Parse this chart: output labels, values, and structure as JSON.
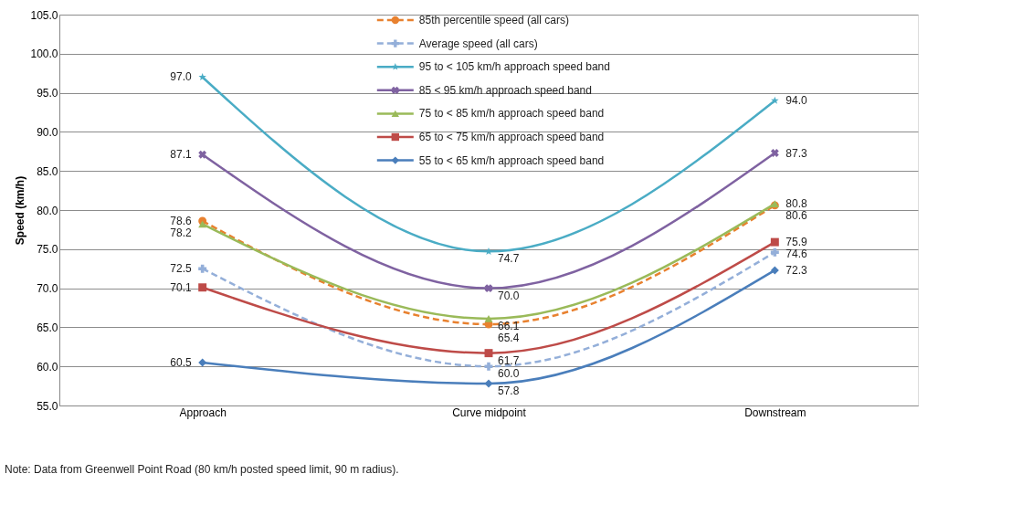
{
  "chart_data": {
    "type": "line",
    "ylabel": "Speed (km/h)",
    "categories": [
      "Approach",
      "Curve midpoint",
      "Downstream"
    ],
    "ylim": [
      55,
      105
    ],
    "yticks": [
      {
        "value": 55,
        "label": "55.0"
      },
      {
        "value": 60,
        "label": "60.0"
      },
      {
        "value": 65,
        "label": "65.0"
      },
      {
        "value": 70,
        "label": "70.0"
      },
      {
        "value": 75,
        "label": "75.0"
      },
      {
        "value": 80,
        "label": "80.0"
      },
      {
        "value": 85,
        "label": "85.0"
      },
      {
        "value": 90,
        "label": "90.0"
      },
      {
        "value": 95,
        "label": "95.0"
      },
      {
        "value": 100,
        "label": "100.0"
      },
      {
        "value": 105,
        "label": "105.0"
      }
    ],
    "grid": "y",
    "legend": "top",
    "series": [
      {
        "name": "85th percentile speed (all cars)",
        "color": "#e8812f",
        "values": [
          78.6,
          65.4,
          80.6
        ],
        "value_labels": [
          "78.6",
          "65.4",
          "80.6"
        ],
        "marker": "circle",
        "line_style": "dashed"
      },
      {
        "name": "Average speed (all cars)",
        "color": "#94afd9",
        "values": [
          72.5,
          60.0,
          74.6
        ],
        "value_labels": [
          "72.5",
          "60.0",
          "74.6"
        ],
        "marker": "cross",
        "line_style": "dashed"
      },
      {
        "name": "95 to < 105 km/h approach speed band",
        "color": "#4aacc5",
        "values": [
          97.0,
          74.7,
          94.0
        ],
        "value_labels": [
          "97.0",
          "74.7",
          "94.0"
        ],
        "marker": "star",
        "line_style": "solid"
      },
      {
        "name": "85 < 95 km/h  approach speed band",
        "color": "#7f62a1",
        "values": [
          87.1,
          70.0,
          87.3
        ],
        "value_labels": [
          "87.1",
          "70.0",
          "87.3"
        ],
        "marker": "cross",
        "line_style": "solid"
      },
      {
        "name": "75 to < 85 km/h  approach speed band",
        "color": "#9aba59",
        "values": [
          78.2,
          66.1,
          80.8
        ],
        "value_labels": [
          "78.2",
          "66.1",
          "80.8"
        ],
        "marker": "triangle",
        "line_style": "solid"
      },
      {
        "name": "65 to < 75 km/h  approach speed band",
        "color": "#be4b48",
        "values": [
          70.1,
          61.7,
          75.9
        ],
        "value_labels": [
          "70.1",
          "61.7",
          "75.9"
        ],
        "marker": "square",
        "line_style": "solid"
      },
      {
        "name": "55 to < 65 km/h  approach speed band",
        "color": "#4a7ebb",
        "values": [
          60.5,
          57.8,
          72.3
        ],
        "value_labels": [
          "60.5",
          "57.8",
          "72.3"
        ],
        "marker": "diamond",
        "line_style": "solid"
      }
    ],
    "annotations": [
      "Note: Data from Greenwell Point Road (80 km/h posted speed limit, 90 m radius)."
    ]
  }
}
